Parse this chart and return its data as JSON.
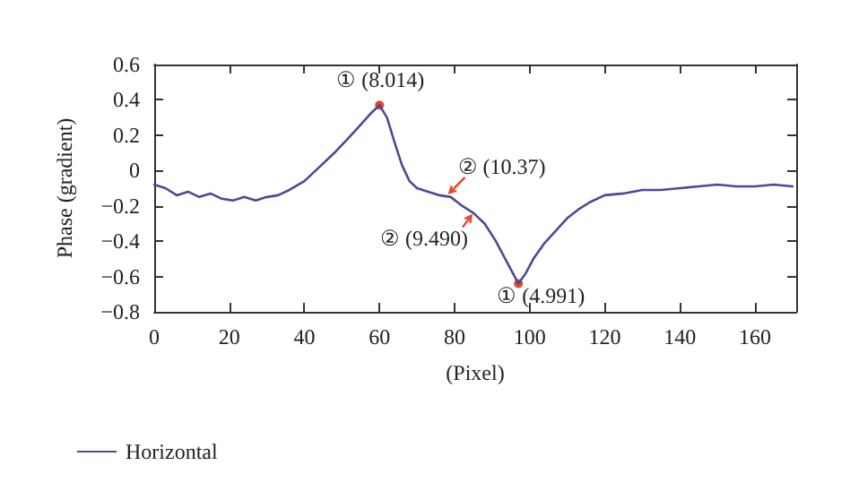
{
  "chart_data": {
    "type": "line",
    "xlabel": "(Pixel)",
    "ylabel": "Phase (gradient)",
    "legend": "bottom left",
    "grid": false,
    "marker": "none",
    "line_style": "solid",
    "xlim": [
      0,
      171
    ],
    "xticks": [
      0,
      20,
      40,
      60,
      80,
      100,
      120,
      140,
      160
    ],
    "ylim": [
      -0.8,
      0.6
    ],
    "yticks": [
      -0.8,
      -0.6,
      -0.4,
      -0.2,
      0,
      0.2,
      0.4,
      0.6
    ],
    "series": [
      {
        "name": "Horizontal",
        "color": "#4a4a9a",
        "x": [
          0,
          3,
          6,
          9,
          12,
          15,
          18,
          21,
          24,
          27,
          30,
          33,
          36,
          40,
          44,
          48,
          52,
          55,
          58,
          60,
          62,
          64,
          66,
          68,
          70,
          73,
          76,
          79,
          82,
          85,
          88,
          91,
          94,
          97,
          99,
          101,
          104,
          107,
          110,
          113,
          116,
          120,
          125,
          130,
          135,
          140,
          145,
          150,
          155,
          160,
          165,
          170
        ],
        "values": [
          -0.08,
          -0.1,
          -0.14,
          -0.12,
          -0.15,
          -0.13,
          -0.16,
          -0.17,
          -0.15,
          -0.17,
          -0.15,
          -0.14,
          -0.11,
          -0.06,
          0.02,
          0.1,
          0.19,
          0.26,
          0.33,
          0.37,
          0.3,
          0.16,
          0.03,
          -0.06,
          -0.1,
          -0.12,
          -0.14,
          -0.15,
          -0.2,
          -0.24,
          -0.3,
          -0.4,
          -0.52,
          -0.64,
          -0.58,
          -0.5,
          -0.41,
          -0.34,
          -0.27,
          -0.22,
          -0.18,
          -0.14,
          -0.13,
          -0.11,
          -0.11,
          -0.1,
          -0.09,
          -0.08,
          -0.09,
          -0.09,
          -0.08,
          -0.09
        ]
      }
    ],
    "annotations": [
      {
        "text": "① (8.014)",
        "x": 60,
        "y": 0.37
      },
      {
        "text": "② (10.37)",
        "x": 78,
        "y": -0.14
      },
      {
        "text": "② (9.490)",
        "x": 85,
        "y": -0.24
      },
      {
        "text": "① (4.991)",
        "x": 97,
        "y": -0.64
      }
    ]
  }
}
